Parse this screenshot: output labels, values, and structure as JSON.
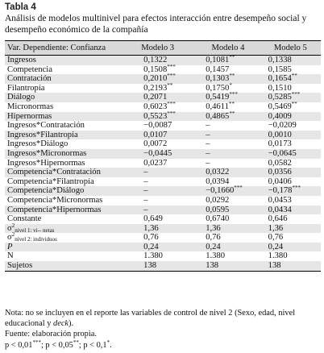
{
  "table": {
    "number": "Tabla 4",
    "caption": "Análisis de modelos multinivel para efectos interacción entre desempeño social y desempeño económico de la compañía",
    "headers": [
      "Var. Dependiente: Confianza",
      "Modelo 3",
      "Modelo 4",
      "Modelo 5"
    ],
    "rows": [
      {
        "label": "Ingresos",
        "v": [
          "0,1322",
          "0,1081",
          "0,1338"
        ],
        "s": [
          "",
          "**",
          ""
        ]
      },
      {
        "label": "Competencia",
        "v": [
          "0,1508",
          "0,1457",
          "0,1585"
        ],
        "s": [
          "***",
          "",
          ""
        ]
      },
      {
        "label": "Contratación",
        "v": [
          "0,2010",
          "0,1303",
          "0,1654"
        ],
        "s": [
          "***",
          "**",
          "**"
        ]
      },
      {
        "label": "Filantropía",
        "v": [
          "0,2193",
          "0,1750",
          "0,1510"
        ],
        "s": [
          "**",
          "*",
          ""
        ]
      },
      {
        "label": "Diálogo",
        "v": [
          "0,2071",
          "0,5419",
          "0,5285"
        ],
        "s": [
          "",
          "***",
          "***"
        ]
      },
      {
        "label": "Micronormas",
        "v": [
          "0,6023",
          "0,4611",
          "0,5469"
        ],
        "s": [
          "***",
          "**",
          "**"
        ]
      },
      {
        "label": "Hipernormas",
        "v": [
          "0,5523",
          "0,4865",
          "0,4009"
        ],
        "s": [
          "***",
          "**",
          ""
        ]
      },
      {
        "label": "Ingresos*Contratación",
        "v": [
          "−0,0087",
          "–",
          "−0,0209"
        ],
        "s": [
          "",
          "",
          ""
        ]
      },
      {
        "label": "Ingresos*Filantropía",
        "v": [
          "0,0107",
          "–",
          "0,0010"
        ],
        "s": [
          "",
          "",
          ""
        ]
      },
      {
        "label": "Ingresos*Diálogo",
        "v": [
          "0,0072",
          "–",
          "0,0173"
        ],
        "s": [
          "",
          "",
          ""
        ]
      },
      {
        "label": "Ingresos*Micronormas",
        "v": [
          "−0,0445",
          "–",
          "−0,0645"
        ],
        "s": [
          "",
          "",
          ""
        ]
      },
      {
        "label": "Ingresos*Hipernormas",
        "v": [
          "0,0237",
          "–",
          "0,0582"
        ],
        "s": [
          "",
          "",
          ""
        ]
      },
      {
        "label": "Competencia*Contratación",
        "v": [
          "–",
          "0,0322",
          "0,0356"
        ],
        "s": [
          "",
          "",
          ""
        ]
      },
      {
        "label": "Competencia*Filantropía",
        "v": [
          "–",
          "0,0394",
          "0,0406"
        ],
        "s": [
          "",
          "",
          ""
        ]
      },
      {
        "label": "Competencia*Diálogo",
        "v": [
          "–",
          "−0,1660",
          "−0,178"
        ],
        "s": [
          "",
          "***",
          "***"
        ]
      },
      {
        "label": "Competencia*Micronormas",
        "v": [
          "–",
          "0,0292",
          "0,0453"
        ],
        "s": [
          "",
          "",
          ""
        ]
      },
      {
        "label": "Competencia*Hipernormas",
        "v": [
          "–",
          "0,0595",
          "0,0434"
        ],
        "s": [
          "",
          "",
          ""
        ]
      },
      {
        "label": "Constante",
        "v": [
          "0,649",
          "0,6740",
          "0,646"
        ],
        "s": [
          "",
          "",
          ""
        ]
      },
      {
        "sym": "σ",
        "sup": "2",
        "sub": "nivel 1: vi-- netas",
        "v": [
          "1,36",
          "1,36",
          "1,36"
        ],
        "s": [
          "",
          "",
          ""
        ]
      },
      {
        "sym": "σ",
        "sup": "2",
        "sub": "nivel 2: individuos",
        "v": [
          "0,76",
          "0,76",
          "0,76"
        ],
        "s": [
          "",
          "",
          ""
        ]
      },
      {
        "label": "P",
        "italic": true,
        "v": [
          "0,24",
          "0,24",
          "0,24"
        ],
        "s": [
          "",
          "",
          ""
        ]
      },
      {
        "label": "N",
        "v": [
          "1.380",
          "1.380",
          "1.380"
        ],
        "s": [
          "",
          "",
          ""
        ]
      },
      {
        "label": "Sujetos",
        "v": [
          "138",
          "138",
          "138"
        ],
        "s": [
          "",
          "",
          ""
        ]
      }
    ]
  },
  "notes": {
    "nota_pre": "Nota: no se incluyen en el reporte las variables de control de nivel 2 (Sexo, edad, nivel educacional y ",
    "nota_em": "deck",
    "nota_post": ").",
    "fuente": "Fuente: elaboración propia.",
    "sig_a": "p < 0,01",
    "sig_a_mark": "***",
    "sig_b": "; p < 0,05",
    "sig_b_mark": "**",
    "sig_c": "; p < 0,1",
    "sig_c_mark": "*",
    "sig_end": "."
  }
}
